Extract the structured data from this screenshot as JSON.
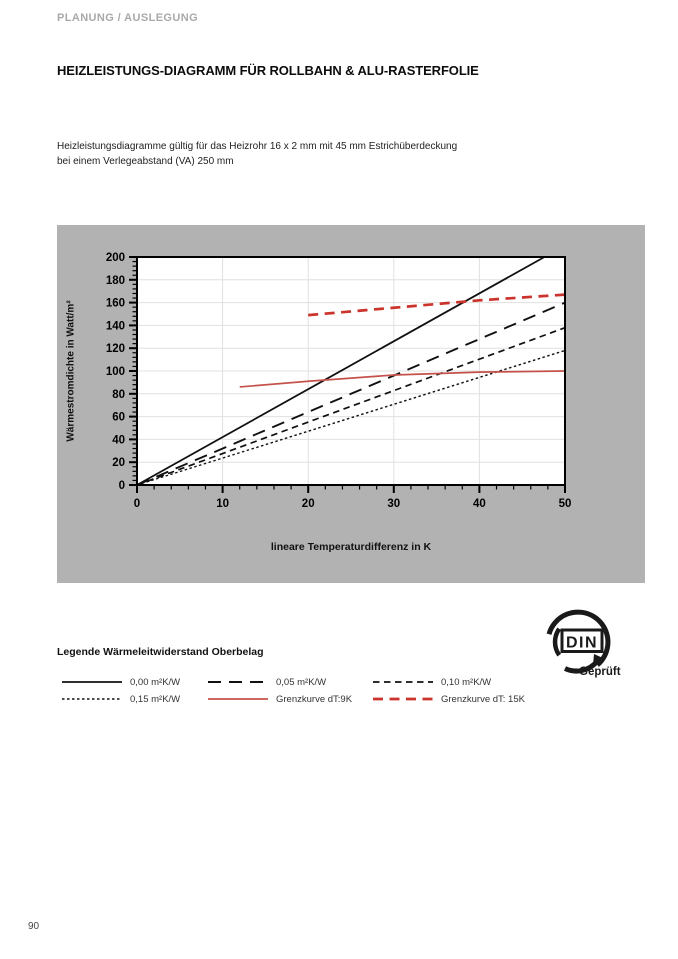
{
  "page": {
    "header": "PLANUNG / AUSLEGUNG",
    "title": "HEIZLEISTUNGS-DIAGRAMM FÜR ROLLBAHN & ALU-RASTERFOLIE",
    "description_line1": "Heizleistungsdiagramme gültig für das Heizrohr 16 x 2 mm mit 45 mm Estrichüberdeckung",
    "description_line2": "bei einem Verlegeabstand (VA) 250 mm",
    "page_number": "90"
  },
  "colors": {
    "panel_bg": "#b2b2b2",
    "plot_bg": "#ffffff",
    "grid": "#e0e0e0",
    "frame": "#000000",
    "header_gray": "#a9a9a9"
  },
  "chart_data": {
    "type": "line",
    "title": "",
    "xlabel": "lineare Temperaturdifferenz in K",
    "ylabel": "Wärmestromdichte in Watt/m²",
    "xlim": [
      0,
      50
    ],
    "ylim": [
      0,
      200
    ],
    "xticks": [
      0,
      10,
      20,
      30,
      40,
      50
    ],
    "yticks": [
      0,
      20,
      40,
      60,
      80,
      100,
      120,
      140,
      160,
      180,
      200
    ],
    "x_minor_step": 2,
    "y_minor_step": 4,
    "grid": true,
    "legend_position": "below",
    "series": [
      {
        "name": "0,00 m²K/W",
        "color": "#111111",
        "dash": "",
        "width": 1.8,
        "points": [
          [
            0,
            0
          ],
          [
            47.6,
            200
          ]
        ]
      },
      {
        "name": "0,05 m²K/W",
        "color": "#111111",
        "dash": "13,8",
        "width": 1.9,
        "points": [
          [
            0,
            0
          ],
          [
            50,
            160
          ]
        ]
      },
      {
        "name": "0,10 m²K/W",
        "color": "#111111",
        "dash": "6.5,4.5",
        "width": 1.7,
        "points": [
          [
            0,
            0
          ],
          [
            50,
            138
          ]
        ]
      },
      {
        "name": "0,15 m²K/W",
        "color": "#111111",
        "dash": "2.5,2.5",
        "width": 1.4,
        "points": [
          [
            0,
            0
          ],
          [
            50,
            118
          ]
        ]
      },
      {
        "name": "Grenzkurve dT:9K",
        "color": "#c4524a",
        "dash": "",
        "width": 1.7,
        "points": [
          [
            12,
            86
          ],
          [
            20,
            91
          ],
          [
            30,
            96.5
          ],
          [
            40,
            99
          ],
          [
            50,
            100
          ]
        ]
      },
      {
        "name": "Grenzkurve dT: 15K",
        "color": "#cb342c",
        "dash": "10,6.5",
        "width": 2.7,
        "points": [
          [
            20,
            149
          ],
          [
            30,
            155.5
          ],
          [
            40,
            162
          ],
          [
            50,
            167
          ]
        ]
      }
    ]
  },
  "legend": {
    "heading": "Legende Wärmeleitwiderstand Oberbelag",
    "items": [
      0,
      1,
      2,
      3,
      4,
      5
    ]
  },
  "din_logo": {
    "label": "DIN",
    "caption": "Geprüft"
  }
}
